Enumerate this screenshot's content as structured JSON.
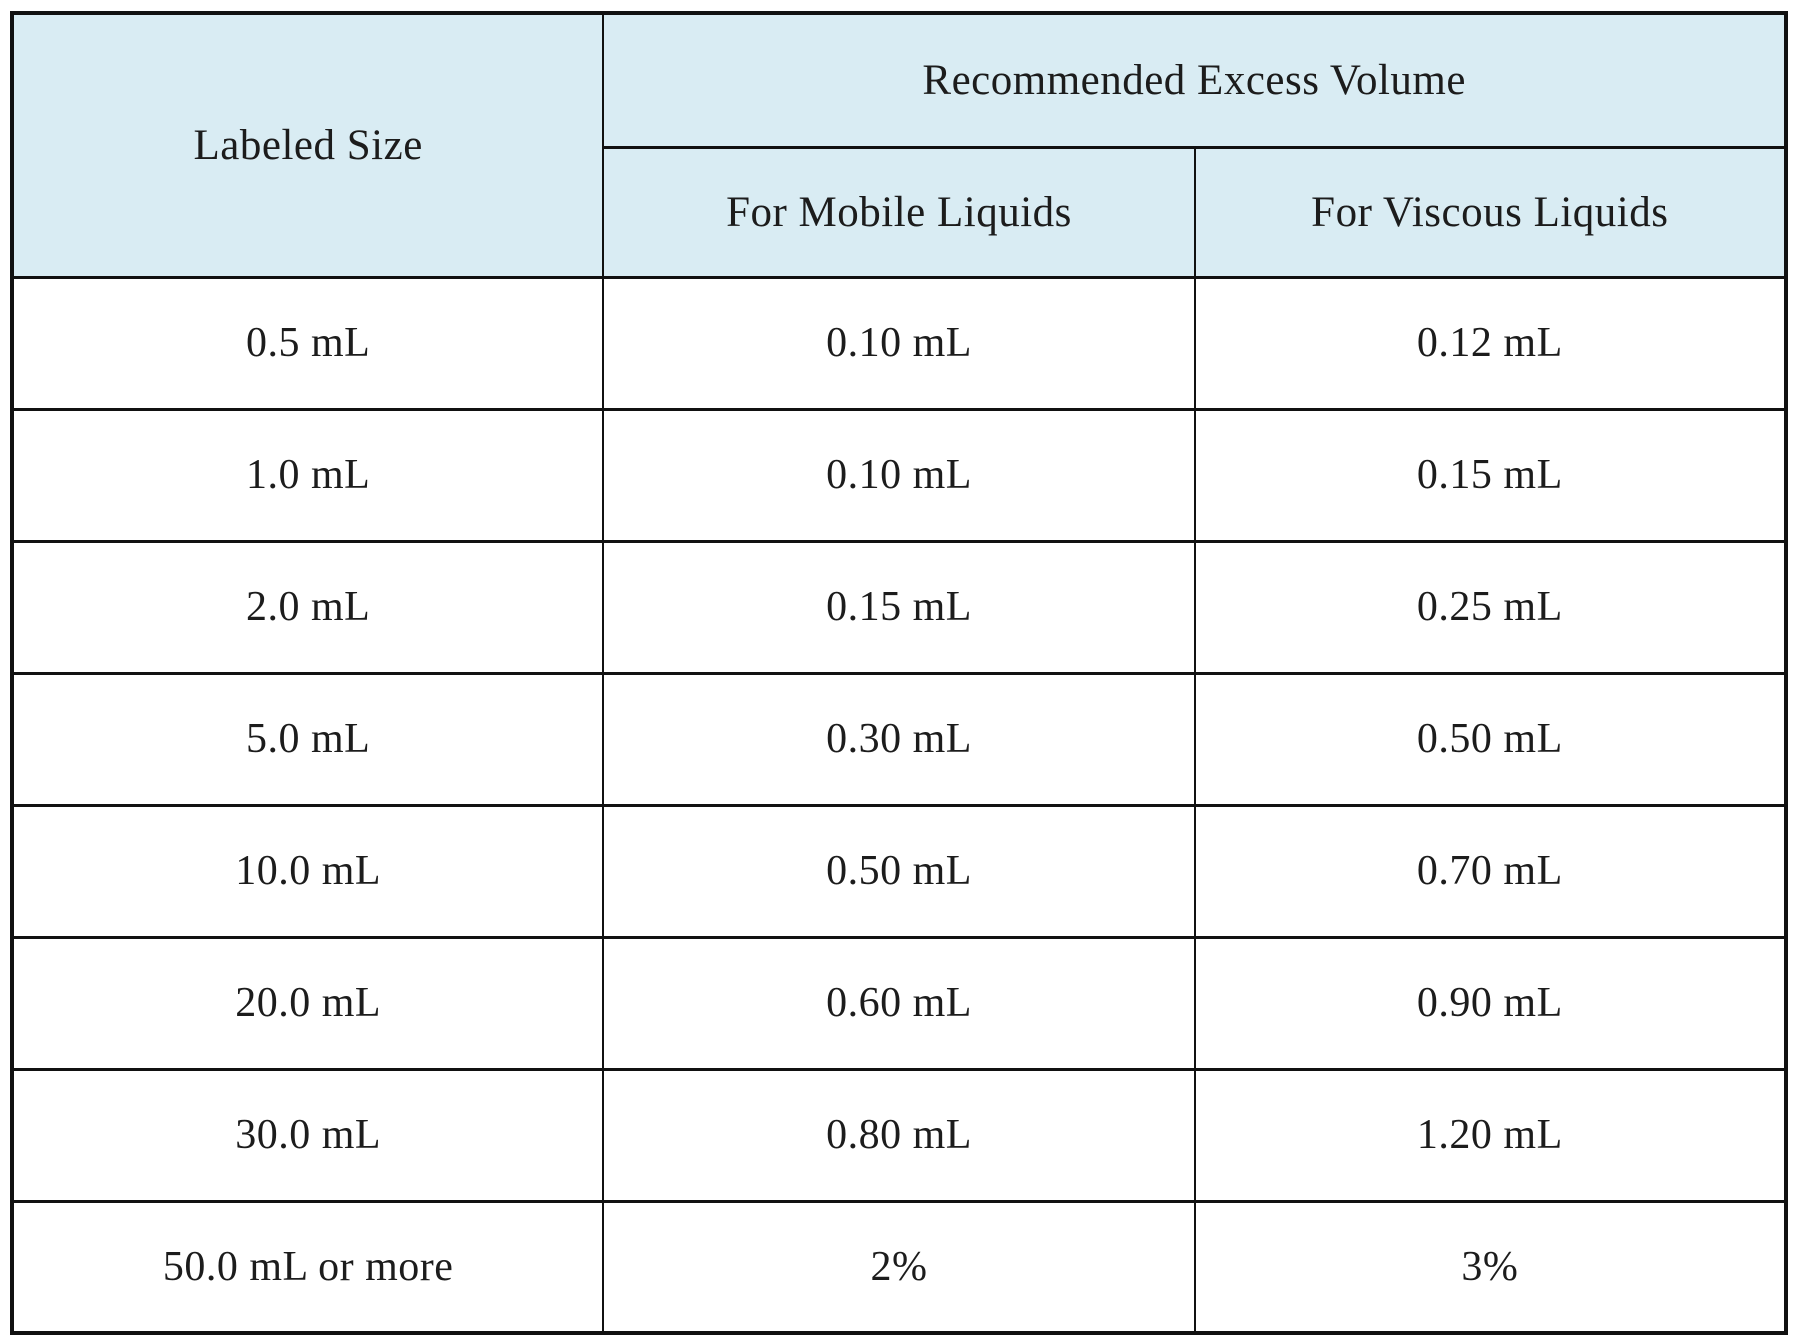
{
  "theme": {
    "header_bg": "#d9ecf3",
    "border": "#111111",
    "text": "#1c1c1c"
  },
  "table": {
    "header": {
      "labeled_size": "Labeled Size",
      "excess_volume": "Recommended Excess Volume",
      "mobile": "For Mobile Liquids",
      "viscous": "For Viscous Liquids"
    },
    "rows": [
      {
        "size": "0.5 mL",
        "mobile": "0.10 mL",
        "viscous": "0.12 mL"
      },
      {
        "size": "1.0 mL",
        "mobile": "0.10 mL",
        "viscous": "0.15 mL"
      },
      {
        "size": "2.0 mL",
        "mobile": "0.15 mL",
        "viscous": "0.25 mL"
      },
      {
        "size": "5.0 mL",
        "mobile": "0.30 mL",
        "viscous": "0.50 mL"
      },
      {
        "size": "10.0 mL",
        "mobile": "0.50 mL",
        "viscous": "0.70 mL"
      },
      {
        "size": "20.0 mL",
        "mobile": "0.60 mL",
        "viscous": "0.90 mL"
      },
      {
        "size": "30.0 mL",
        "mobile": "0.80 mL",
        "viscous": "1.20 mL"
      },
      {
        "size": "50.0 mL or more",
        "mobile": "2%",
        "viscous": "3%"
      }
    ]
  },
  "chart_data": {
    "type": "table",
    "title": "Recommended Excess Volume",
    "columns": [
      "Labeled Size",
      "For Mobile Liquids",
      "For Viscous Liquids"
    ],
    "rows": [
      [
        "0.5 mL",
        "0.10 mL",
        "0.12 mL"
      ],
      [
        "1.0 mL",
        "0.10 mL",
        "0.15 mL"
      ],
      [
        "2.0 mL",
        "0.15 mL",
        "0.25 mL"
      ],
      [
        "5.0 mL",
        "0.30 mL",
        "0.50 mL"
      ],
      [
        "10.0 mL",
        "0.50 mL",
        "0.70 mL"
      ],
      [
        "20.0 mL",
        "0.60 mL",
        "0.90 mL"
      ],
      [
        "30.0 mL",
        "0.80 mL",
        "1.20 mL"
      ],
      [
        "50.0 mL or more",
        "2%",
        "3%"
      ]
    ],
    "layout_hints": {
      "header_fill": "#d9ecf3",
      "grid": "on",
      "merged_cells": "Labeled Size spans 2 header rows; Recommended Excess Volume spans 2 columns"
    }
  }
}
